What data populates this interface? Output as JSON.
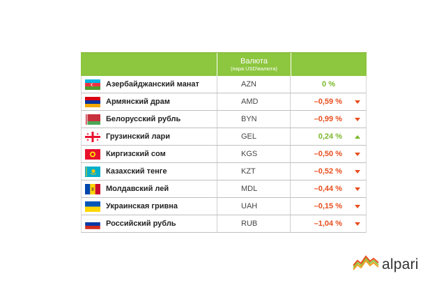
{
  "header": {
    "currency_title": "Валюта",
    "currency_subtitle": "(пара USD\\валюта)"
  },
  "rows": [
    {
      "name": "Азербайджанский манат",
      "code": "AZN",
      "change": "0 %",
      "direction": "none",
      "flag": "azerbaijan-flag-icon"
    },
    {
      "name": "Армянский драм",
      "code": "AMD",
      "change": "–0,59 %",
      "direction": "down",
      "flag": "armenia-flag-icon"
    },
    {
      "name": "Белорусский рубль",
      "code": "BYN",
      "change": "–0,99 %",
      "direction": "down",
      "flag": "belarus-flag-icon"
    },
    {
      "name": "Грузинский лари",
      "code": "GEL",
      "change": "0,24 %",
      "direction": "up",
      "flag": "georgia-flag-icon"
    },
    {
      "name": "Киргизский сом",
      "code": "KGS",
      "change": "–0,50 %",
      "direction": "down",
      "flag": "kyrgyzstan-flag-icon"
    },
    {
      "name": "Казахский тенге",
      "code": "KZT",
      "change": "–0,52 %",
      "direction": "down",
      "flag": "kazakhstan-flag-icon"
    },
    {
      "name": "Молдавский лей",
      "code": "MDL",
      "change": "–0,44 %",
      "direction": "down",
      "flag": "moldova-flag-icon"
    },
    {
      "name": "Украинская гривна",
      "code": "UAH",
      "change": "–0,15 %",
      "direction": "down",
      "flag": "ukraine-flag-icon"
    },
    {
      "name": "Российский рубль",
      "code": "RUB",
      "change": "–1,04 %",
      "direction": "down",
      "flag": "russia-flag-icon"
    }
  ],
  "colors": {
    "header_green": "#8dc63f",
    "negative": "#e84d1c",
    "positive": "#7ab829"
  },
  "logo": {
    "text": "alpari",
    "icon": "alpari-logo-icon"
  }
}
